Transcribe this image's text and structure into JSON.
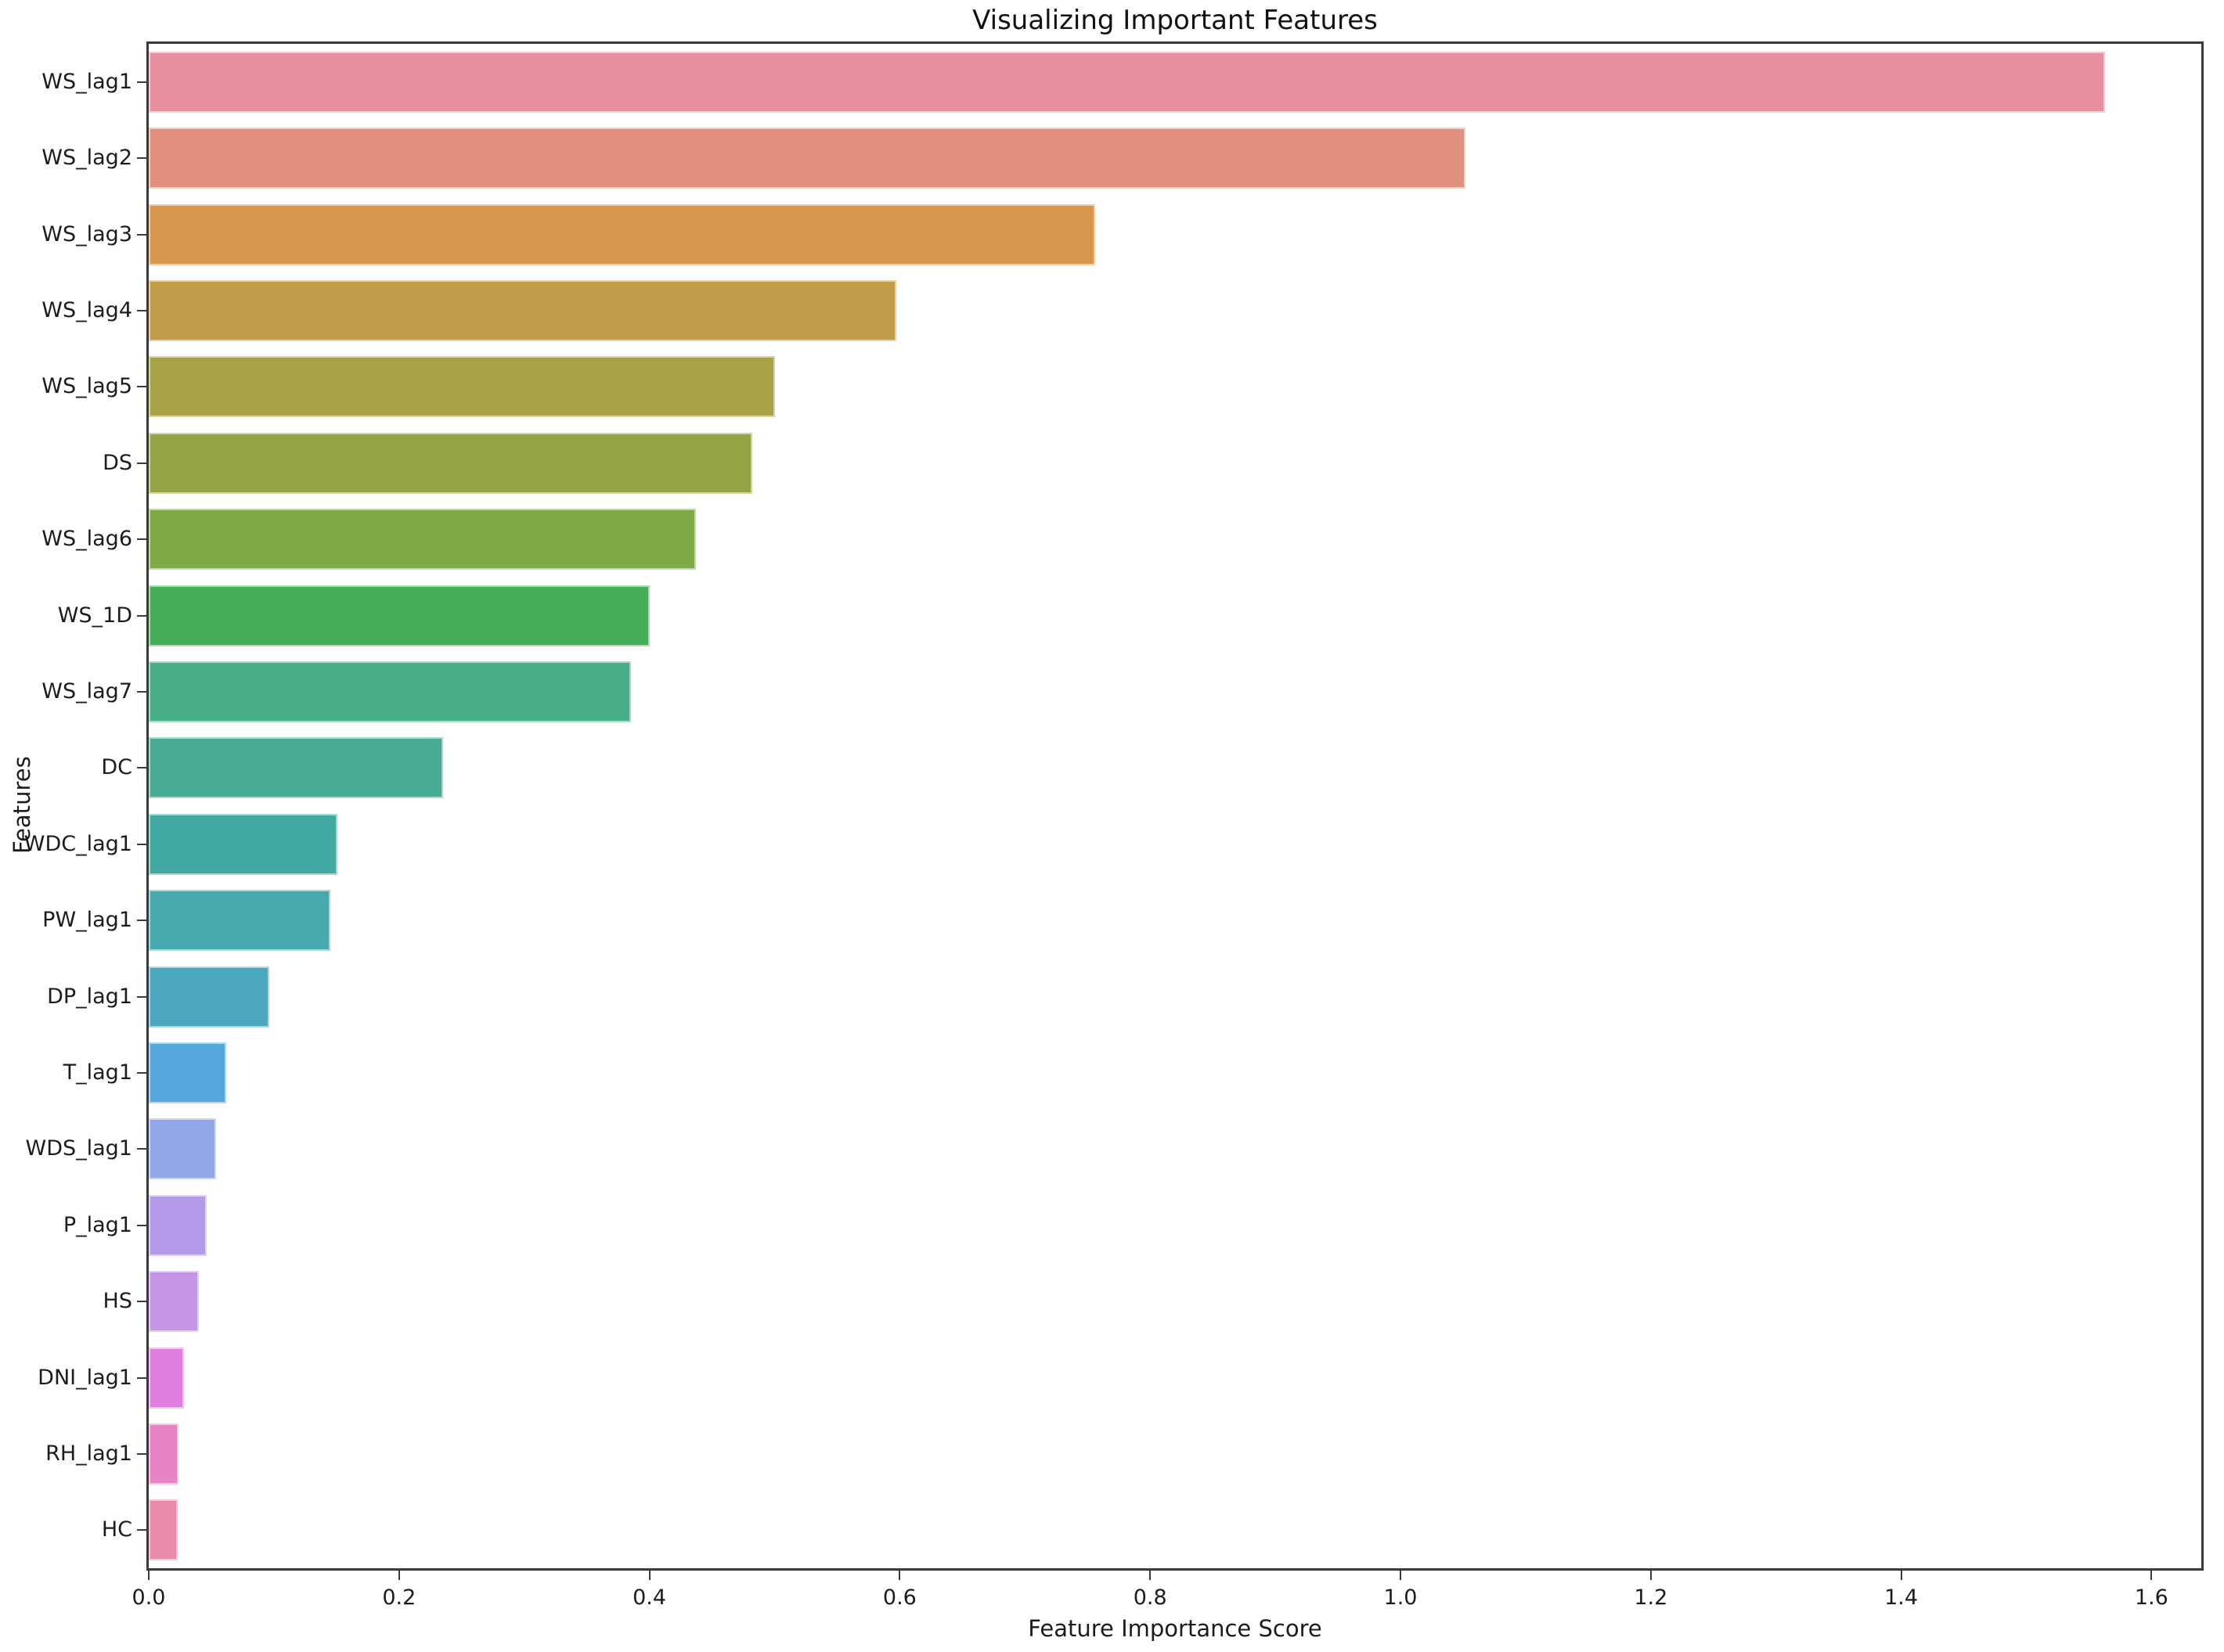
{
  "chart_data": {
    "type": "bar",
    "orientation": "horizontal",
    "title": "Visualizing Important Features",
    "xlabel": "Feature Importance Score",
    "ylabel": "Features",
    "xlim": [
      0,
      1.64
    ],
    "xticks": [
      0.0,
      0.2,
      0.4,
      0.6,
      0.8,
      1.0,
      1.2,
      1.4,
      1.6
    ],
    "grid": false,
    "legend": {
      "visible": true,
      "entries": [],
      "position": "upper-right"
    },
    "categories": [
      "WS_lag1",
      "WS_lag2",
      "WS_lag3",
      "WS_lag4",
      "WS_lag5",
      "DS",
      "WS_lag6",
      "WS_1D",
      "WS_lag7",
      "DC",
      "WDC_lag1",
      "PW_lag1",
      "DP_lag1",
      "T_lag1",
      "WDS_lag1",
      "P_lag1",
      "HS",
      "DNI_lag1",
      "RH_lag1",
      "HC"
    ],
    "values": [
      1.563,
      1.052,
      0.756,
      0.597,
      0.5,
      0.482,
      0.437,
      0.4,
      0.385,
      0.235,
      0.151,
      0.145,
      0.096,
      0.062,
      0.054,
      0.046,
      0.04,
      0.028,
      0.024,
      0.023
    ],
    "bar_colors": [
      "#e78fa0",
      "#e19080",
      "#d7954e",
      "#c19c49",
      "#aba245",
      "#97a446",
      "#7faa48",
      "#46ae58",
      "#47ad84",
      "#47ab93",
      "#42a8a2",
      "#46a9ad",
      "#4aa7bd",
      "#56a7dc",
      "#93a6ea",
      "#b49ae9",
      "#c795e6",
      "#e07ee0",
      "#e884c4",
      "#e88aa9"
    ]
  }
}
